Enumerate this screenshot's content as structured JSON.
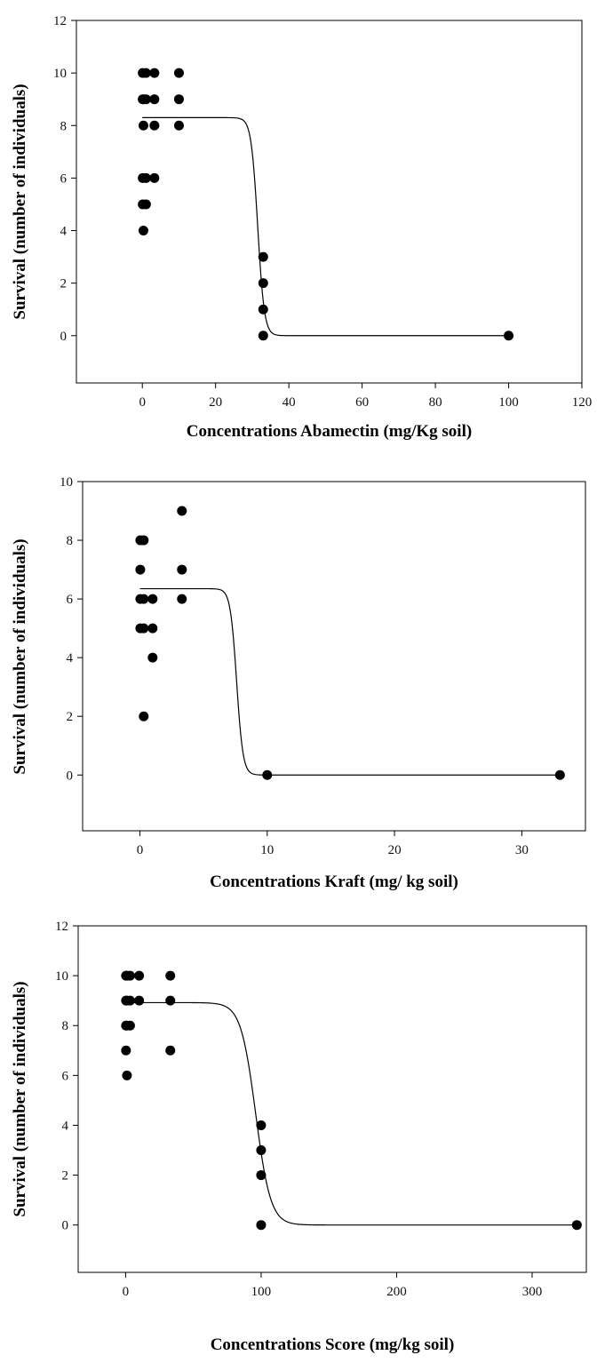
{
  "chart_data": [
    {
      "type": "scatter",
      "xlabel": "Concentrations Abamectin (mg/Kg soil)",
      "ylabel": "Survival (number of individuals)",
      "xlim": [
        -18,
        120
      ],
      "ylim": [
        -1.8,
        12
      ],
      "xticks": [
        0,
        20,
        40,
        60,
        80,
        100,
        120
      ],
      "yticks": [
        0,
        2,
        4,
        6,
        8,
        10,
        12
      ],
      "grid": false,
      "points": [
        [
          0.1,
          10
        ],
        [
          1.0,
          10
        ],
        [
          3.3,
          10
        ],
        [
          10,
          10
        ],
        [
          0.1,
          9
        ],
        [
          0.3,
          9
        ],
        [
          1.0,
          9
        ],
        [
          3.3,
          9
        ],
        [
          10,
          9
        ],
        [
          0.3,
          8
        ],
        [
          3.3,
          8
        ],
        [
          10,
          8
        ],
        [
          0.1,
          6
        ],
        [
          1.0,
          6
        ],
        [
          3.3,
          6
        ],
        [
          0.1,
          5
        ],
        [
          1.0,
          5
        ],
        [
          0.3,
          4
        ],
        [
          33,
          3
        ],
        [
          33,
          2
        ],
        [
          33,
          1
        ],
        [
          33,
          0
        ],
        [
          100,
          0
        ]
      ],
      "fit": {
        "top": 8.3,
        "ec50": 31.5,
        "slope": 0.9,
        "x_range": [
          0,
          100
        ]
      }
    },
    {
      "type": "scatter",
      "xlabel": "Concentrations Kraft (mg/ kg soil)",
      "ylabel": "Survival (number of individuals)",
      "xlim": [
        -4.5,
        35
      ],
      "ylim": [
        -1.9,
        10
      ],
      "xticks": [
        0,
        10,
        20,
        30
      ],
      "yticks": [
        0,
        2,
        4,
        6,
        8,
        10
      ],
      "grid": false,
      "points": [
        [
          0.03,
          8
        ],
        [
          0.3,
          8
        ],
        [
          3.3,
          9
        ],
        [
          0.03,
          7
        ],
        [
          3.3,
          7
        ],
        [
          0.03,
          6
        ],
        [
          0.3,
          6
        ],
        [
          1.0,
          6
        ],
        [
          3.3,
          6
        ],
        [
          0.03,
          5
        ],
        [
          0.3,
          5
        ],
        [
          1.0,
          5
        ],
        [
          1.0,
          4
        ],
        [
          0.3,
          2
        ],
        [
          10,
          0
        ],
        [
          33,
          0
        ]
      ],
      "fit": {
        "top": 6.35,
        "ec50": 7.6,
        "slope": 0.25,
        "x_range": [
          0,
          33
        ]
      }
    },
    {
      "type": "scatter",
      "xlabel": "Concentrations Score (mg/kg soil)",
      "ylabel": "Survival (number of individuals)",
      "xlim": [
        -35,
        340
      ],
      "ylim": [
        -1.9,
        12
      ],
      "xticks": [
        0,
        100,
        200,
        300
      ],
      "yticks": [
        0,
        2,
        4,
        6,
        8,
        10,
        12
      ],
      "grid": false,
      "points": [
        [
          0.3,
          10
        ],
        [
          1,
          10
        ],
        [
          3.3,
          10
        ],
        [
          10,
          10
        ],
        [
          33,
          10
        ],
        [
          0.3,
          9
        ],
        [
          1,
          9
        ],
        [
          3.3,
          9
        ],
        [
          10,
          9
        ],
        [
          33,
          9
        ],
        [
          0.3,
          8
        ],
        [
          1,
          8
        ],
        [
          3.3,
          8
        ],
        [
          0.3,
          7
        ],
        [
          33,
          7
        ],
        [
          1,
          6
        ],
        [
          100,
          4
        ],
        [
          100,
          3
        ],
        [
          100,
          2
        ],
        [
          100,
          0
        ],
        [
          333,
          0
        ]
      ],
      "fit": {
        "top": 8.92,
        "ec50": 96,
        "slope": 5.5,
        "x_range": [
          0,
          333
        ]
      }
    }
  ]
}
